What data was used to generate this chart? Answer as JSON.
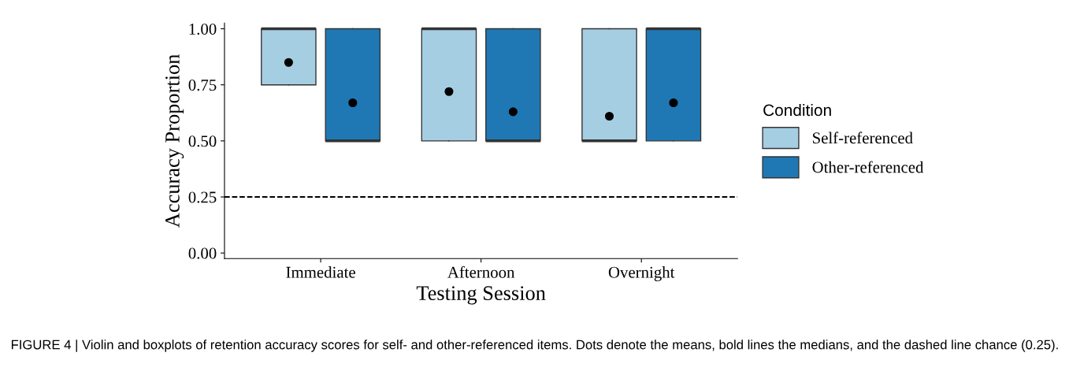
{
  "chart_data": {
    "type": "box",
    "xlabel": "Testing Session",
    "ylabel": "Accuracy Proportion",
    "legend_title": "Condition",
    "categories": [
      "Immediate",
      "Afternoon",
      "Overnight"
    ],
    "series": [
      {
        "name": "Self-referenced",
        "color": "#a6cee3",
        "boxes": [
          {
            "low": 0.75,
            "q1": 0.75,
            "median": 1.0,
            "q3": 1.0,
            "high": 1.0,
            "mean": 0.85
          },
          {
            "low": 0.5,
            "q1": 0.5,
            "median": 1.0,
            "q3": 1.0,
            "high": 1.0,
            "mean": 0.72
          },
          {
            "low": 0.5,
            "q1": 0.5,
            "median": 0.5,
            "q3": 1.0,
            "high": 1.0,
            "mean": 0.61
          }
        ]
      },
      {
        "name": "Other-referenced",
        "color": "#1f78b4",
        "boxes": [
          {
            "low": 0.5,
            "q1": 0.5,
            "median": 0.5,
            "q3": 1.0,
            "high": 1.0,
            "mean": 0.67
          },
          {
            "low": 0.5,
            "q1": 0.5,
            "median": 0.5,
            "q3": 1.0,
            "high": 1.0,
            "mean": 0.63
          },
          {
            "low": 0.5,
            "q1": 0.5,
            "median": 1.0,
            "q3": 1.0,
            "high": 1.0,
            "mean": 0.67
          }
        ]
      }
    ],
    "ylim": [
      -0.025,
      1.025
    ],
    "yticks": [
      {
        "value": 0,
        "label": "0.00"
      },
      {
        "value": 0.25,
        "label": "0.25"
      },
      {
        "value": 0.5,
        "label": "0.50"
      },
      {
        "value": 0.75,
        "label": "0.75"
      },
      {
        "value": 1.0,
        "label": "1.00"
      }
    ],
    "ref_lines": [
      {
        "axis": "y",
        "value": 0.25,
        "color": "#000000",
        "line_style": "dashed"
      }
    ],
    "grid": false,
    "legend": "right",
    "annotations": [
      "FIGURE 4 | Violin and boxplots of retention accuracy scores for self- and other-referenced items. Dots denote the means, bold lines the medians, and the dashed line chance (0.25)."
    ]
  }
}
